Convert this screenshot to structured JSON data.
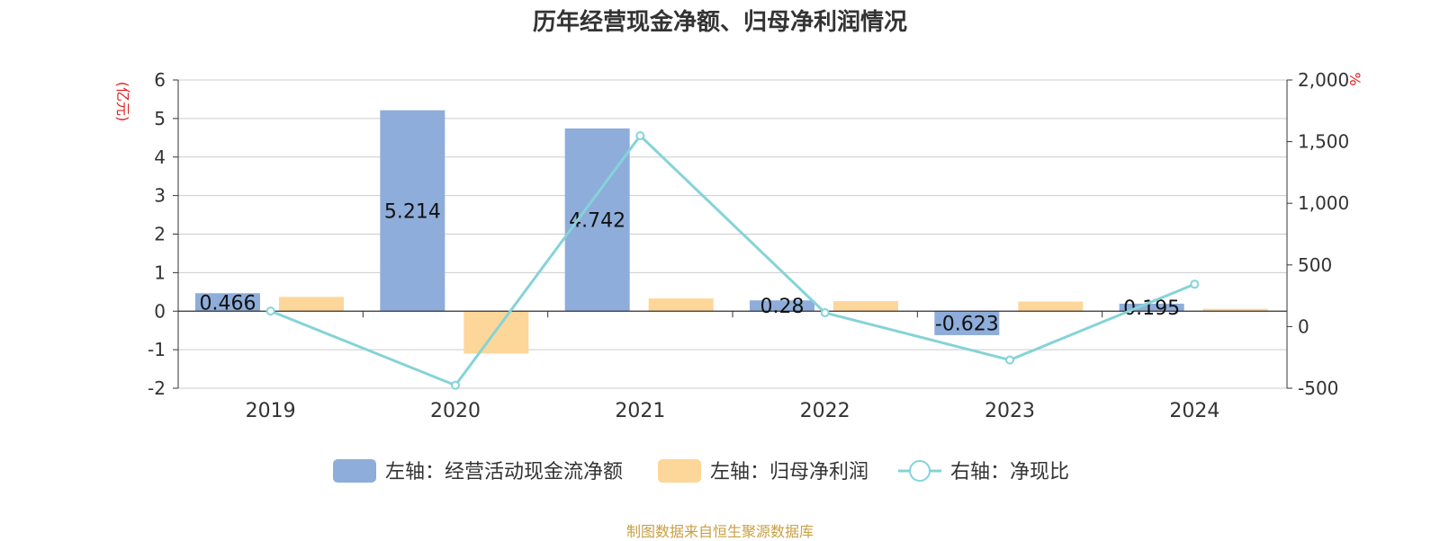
{
  "chart_data": {
    "type": "bar",
    "title": "历年经营现金净额、归母净利润情况",
    "categories": [
      "2019",
      "2020",
      "2021",
      "2022",
      "2023",
      "2024"
    ],
    "series": [
      {
        "name": "左轴：经营活动现金流净额",
        "axis": "left",
        "type": "bar",
        "color": "#8eadda",
        "values": [
          0.466,
          5.214,
          4.742,
          0.28,
          -0.623,
          0.195
        ],
        "labels": [
          "0.466",
          "5.214",
          "4.742",
          "0.28",
          "-0.623",
          "0.195"
        ]
      },
      {
        "name": "左轴：归母净利润",
        "axis": "left",
        "type": "bar",
        "color": "#fdd699",
        "values": [
          0.37,
          -1.1,
          0.33,
          0.26,
          0.25,
          0.06
        ]
      },
      {
        "name": "右轴：净现比",
        "axis": "right",
        "type": "line",
        "color": "#85d3d8",
        "values": [
          126,
          -476,
          1548,
          112,
          -271,
          344
        ]
      }
    ],
    "left_axis": {
      "unit": "(亿元)",
      "ylim": [
        -2,
        6
      ],
      "ticks": [
        "6",
        "5",
        "4",
        "3",
        "2",
        "1",
        "0",
        "-1",
        "-2"
      ],
      "tick_values": [
        6,
        5,
        4,
        3,
        2,
        1,
        0,
        -1,
        -2
      ]
    },
    "right_axis": {
      "unit": "%",
      "ylim": [
        -500,
        2000
      ],
      "ticks": [
        "2,000",
        "1,500",
        "1,000",
        "500",
        "0",
        "-500"
      ],
      "tick_values": [
        2000,
        1500,
        1000,
        500,
        0,
        -500
      ]
    },
    "grid": true,
    "legend_position": "bottom-center",
    "unit_color": "#e02020"
  },
  "source": "制图数据来自恒生聚源数据库"
}
